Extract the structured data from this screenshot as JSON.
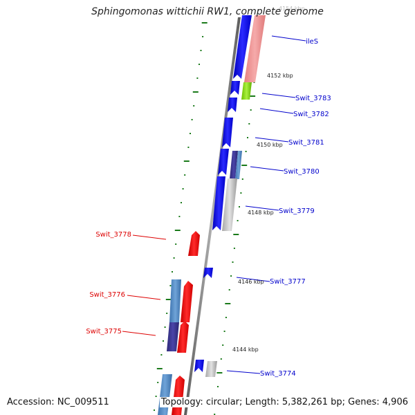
{
  "title": "Sphingomonas wittichii RW1, complete genome",
  "accession": "Accession: NC_009511",
  "topology": "Topology: circular; Length: 5,382,261 bp; Genes: 4,906",
  "colors": {
    "forward_gene": "#0000ff",
    "reverse_gene": "#ff0000",
    "label_forward": "#0000cc",
    "label_reverse": "#dd0000",
    "tick": "#1a7a1a",
    "backbone": "#7f7f7f"
  },
  "scale_labels": [
    "4154 kbp",
    "4152 kbp",
    "4150 kbp",
    "4148 kbp",
    "4146 kbp",
    "4144 kbp"
  ],
  "gene_labels": [
    {
      "text": "ileS",
      "strand": "forward"
    },
    {
      "text": "Swit_3783",
      "strand": "forward"
    },
    {
      "text": "Swit_3782",
      "strand": "forward"
    },
    {
      "text": "Swit_3781",
      "strand": "forward"
    },
    {
      "text": "Swit_3780",
      "strand": "forward"
    },
    {
      "text": "Swit_3779",
      "strand": "forward"
    },
    {
      "text": "Swit_3778",
      "strand": "reverse"
    },
    {
      "text": "Swit_3777",
      "strand": "forward"
    },
    {
      "text": "Swit_3776",
      "strand": "reverse"
    },
    {
      "text": "Swit_3775",
      "strand": "reverse"
    },
    {
      "text": "Swit_3774",
      "strand": "forward"
    }
  ]
}
